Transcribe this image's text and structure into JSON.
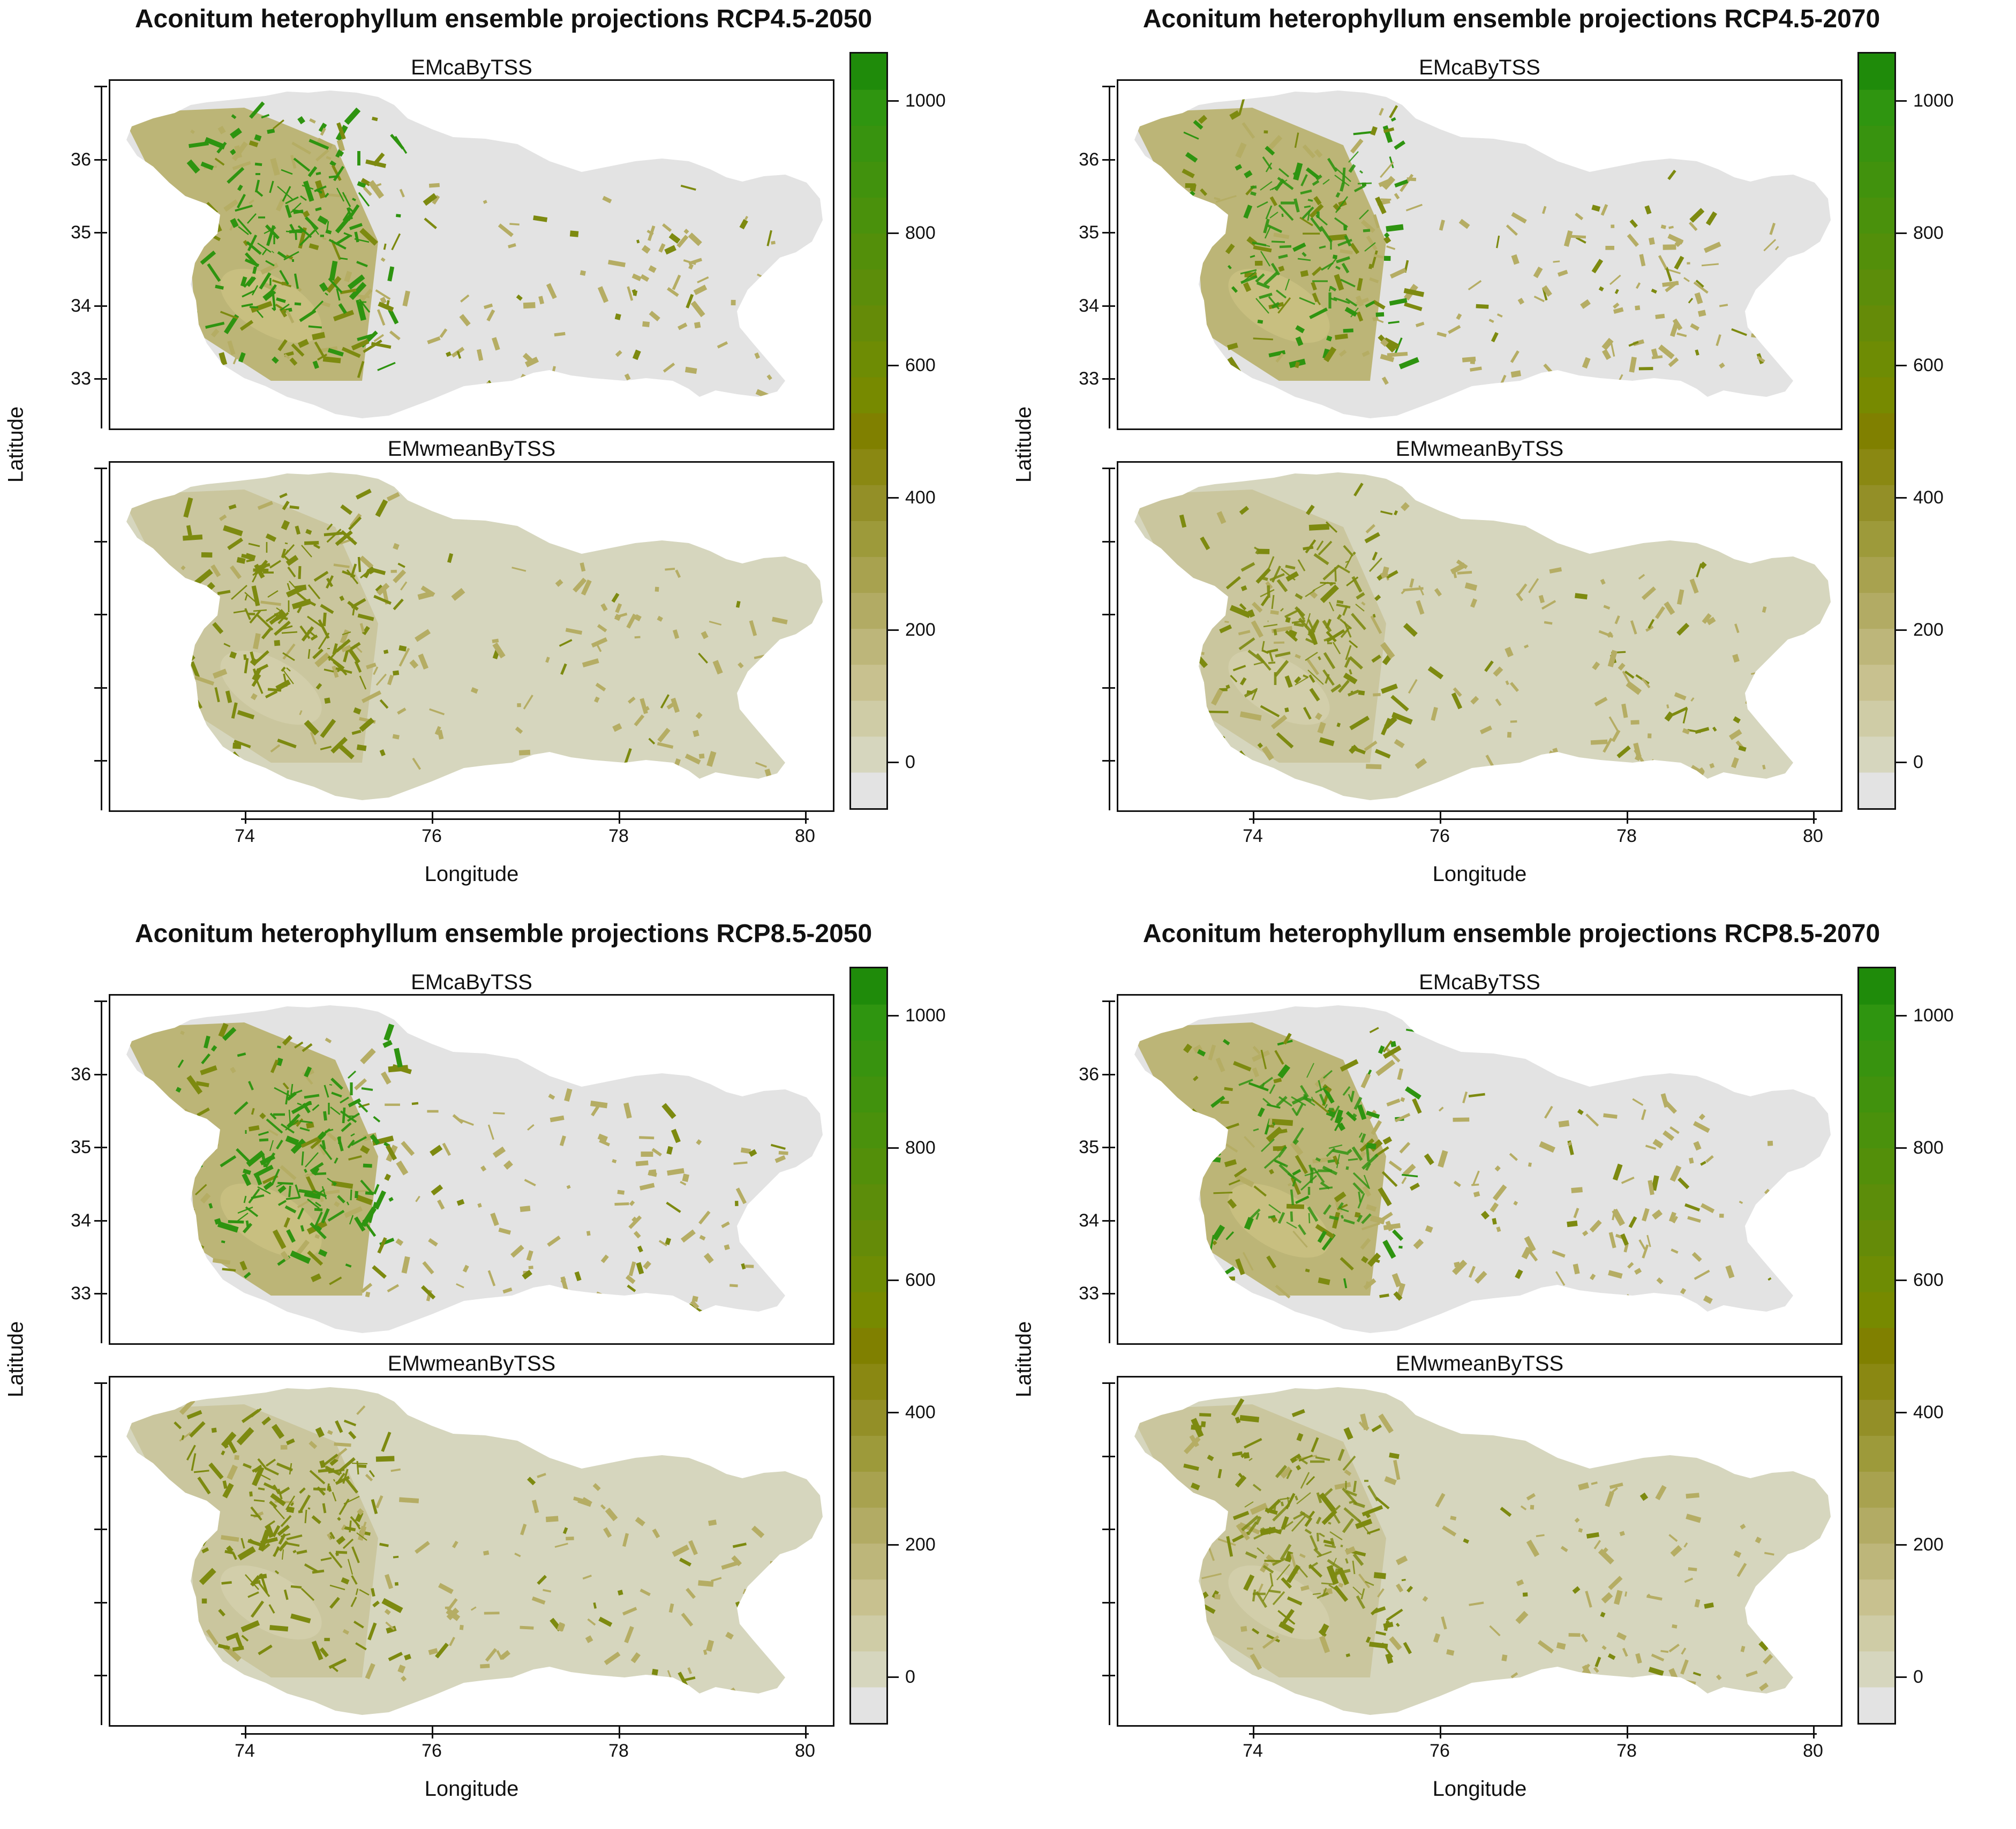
{
  "figures": [
    {
      "title": "Aconitum heterophyllum ensemble projections RCP4.5-2050",
      "scenario": "RCP4.5",
      "year": "2050",
      "top_strip": "EMcaByTSS",
      "bottom_strip": "EMwmeanByTSS"
    },
    {
      "title": "Aconitum heterophyllum ensemble projections RCP4.5-2070",
      "scenario": "RCP4.5",
      "year": "2070",
      "top_strip": "EMcaByTSS",
      "bottom_strip": "EMwmeanByTSS"
    },
    {
      "title": "Aconitum heterophyllum ensemble projections RCP8.5-2050",
      "scenario": "RCP8.5",
      "year": "2050",
      "top_strip": "EMcaByTSS",
      "bottom_strip": "EMwmeanByTSS"
    },
    {
      "title": "Aconitum heterophyllum ensemble projections RCP8.5-2070",
      "scenario": "RCP8.5",
      "year": "2070",
      "top_strip": "EMcaByTSS",
      "bottom_strip": "EMwmeanByTSS"
    }
  ],
  "axes": {
    "xlabel": "Longitude",
    "ylabel": "Latitude",
    "x_ticks": [
      "74",
      "76",
      "78",
      "80"
    ],
    "y_ticks": [
      "36",
      "35",
      "34",
      "33"
    ]
  },
  "colorbar": {
    "labels": [
      "1000",
      "800",
      "600",
      "400",
      "200",
      "0"
    ],
    "range": [
      -70,
      1070
    ],
    "bins": 20,
    "colors": [
      "#e3e3e3",
      "#d6d6be",
      "#cfcca6",
      "#c8c18f",
      "#bdb67a",
      "#b2ab64",
      "#a8a24f",
      "#9d9a3a",
      "#938f27",
      "#8a8812",
      "#808000",
      "#778a00",
      "#6e8c04",
      "#658b08",
      "#5c8d0a",
      "#538f0a",
      "#4a910c",
      "#41920d",
      "#38930f",
      "#2f9510",
      "#1f8b0a"
    ]
  },
  "colors": {
    "absent": "#e3e3e3",
    "low": "#d6d6be",
    "mid": "#b5ad64",
    "high": "#7d8a10",
    "very_high": "#2e9410"
  }
}
